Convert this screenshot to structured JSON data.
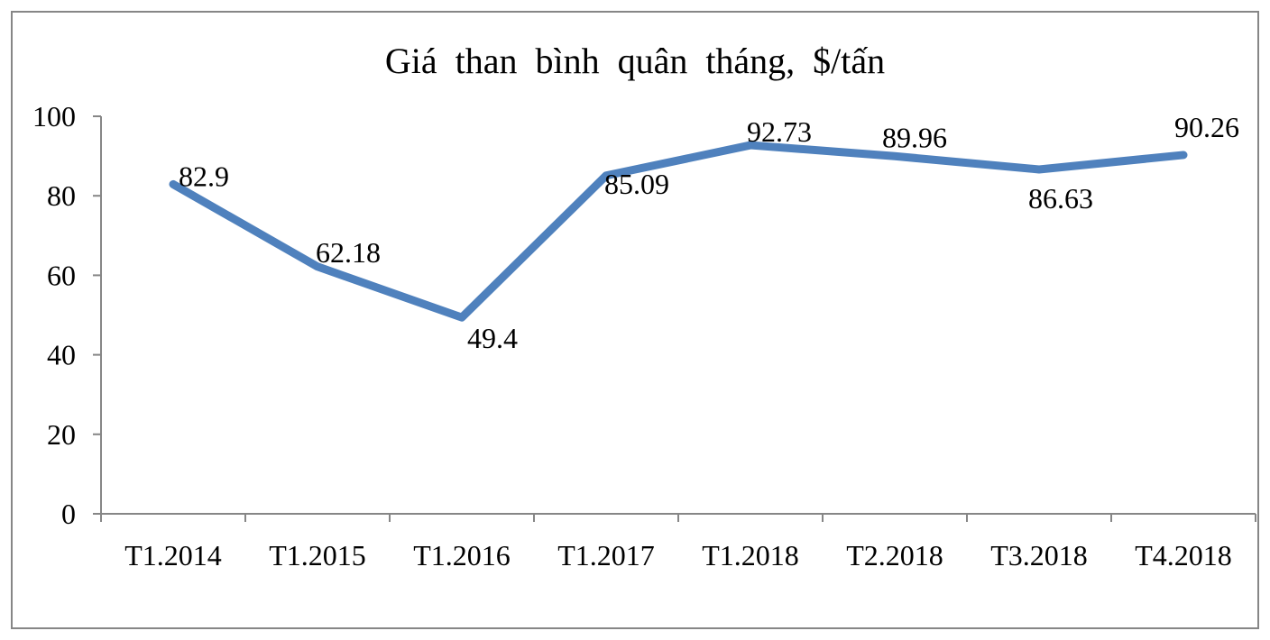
{
  "chart_data": {
    "type": "line",
    "title": "Giá than bình quân tháng, $/tấn",
    "xlabel": "",
    "ylabel": "",
    "categories": [
      "T1.2014",
      "T1.2015",
      "T1.2016",
      "T1.2017",
      "T1.2018",
      "T2.2018",
      "T3.2018",
      "T4.2018"
    ],
    "series": [
      {
        "values": [
          82.9,
          62.18,
          49.4,
          85.09,
          92.73,
          89.96,
          86.63,
          90.26
        ],
        "data_labels": [
          "82.9",
          "62.18",
          "49.4",
          "85.09",
          "92.73",
          "89.96",
          "86.63",
          "90.26"
        ]
      }
    ],
    "ylim": [
      0,
      100
    ],
    "yticks": [
      0,
      20,
      40,
      60,
      80,
      100
    ],
    "ytick_labels": [
      "0",
      "20",
      "40",
      "60",
      "80",
      "100"
    ],
    "grid": false,
    "legend": "none",
    "colors": {
      "line": "#4F81BD",
      "axis": "#868686",
      "text": "#000000"
    }
  }
}
